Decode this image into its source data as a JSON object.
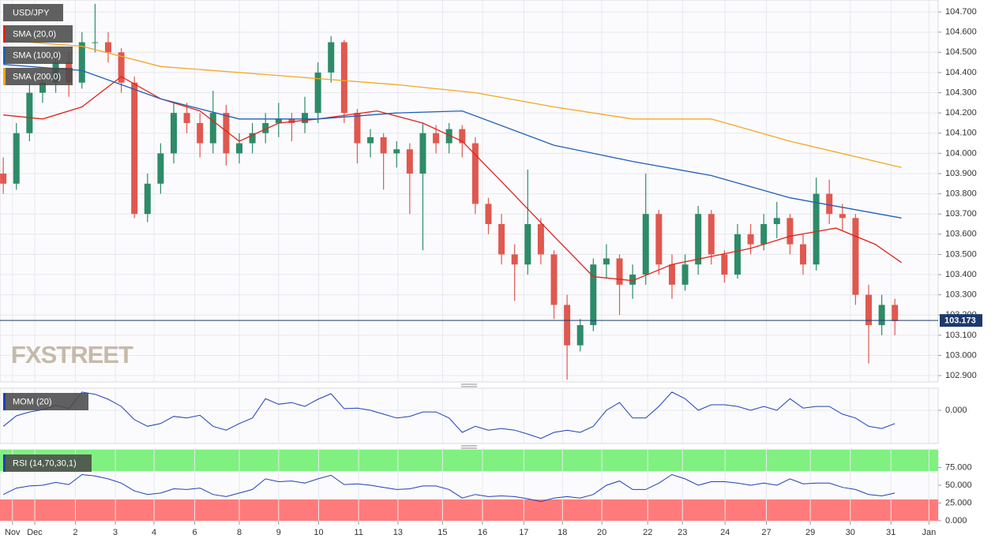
{
  "chart_data": [
    {
      "type": "candlestick",
      "title": "USD/JPY",
      "watermark": "FXSTREET",
      "grid": true,
      "up_color": "#2e8b68",
      "down_color": "#e0584f",
      "last": 103.173,
      "last_color": "#1d3a6e",
      "x": [
        0,
        2,
        4,
        6,
        8,
        10,
        12,
        14,
        16,
        18,
        20,
        22,
        24,
        26,
        28,
        30,
        32,
        34,
        36,
        38,
        40,
        42,
        44,
        46,
        48,
        50,
        52,
        54,
        56,
        58,
        60,
        62,
        64,
        66,
        68,
        70,
        72,
        74,
        76,
        78,
        80,
        82,
        84,
        86,
        88,
        90,
        92,
        94,
        96,
        98,
        100,
        102,
        104,
        106,
        108,
        110,
        112,
        114,
        116,
        118,
        120,
        122,
        124,
        126,
        128,
        130,
        132,
        134,
        136
      ],
      "open": [
        103.9,
        103.85,
        104.1,
        104.3,
        104.35,
        104.45,
        104.35,
        104.55,
        104.55,
        104.5,
        104.35,
        103.7,
        103.85,
        104.0,
        104.2,
        104.15,
        104.05,
        104.2,
        104.0,
        104.05,
        104.1,
        104.15,
        104.17,
        104.15,
        104.2,
        104.4,
        104.55,
        104.2,
        104.05,
        104.08,
        104.0,
        104.02,
        103.9,
        104.1,
        104.05,
        104.12,
        104.05,
        103.75,
        103.65,
        103.5,
        103.45,
        103.65,
        103.5,
        103.25,
        103.05,
        103.15,
        103.45,
        103.48,
        103.35,
        103.4,
        103.7,
        103.45,
        103.35,
        103.45,
        103.7,
        103.5,
        103.4,
        103.6,
        103.55,
        103.65,
        103.68,
        103.55,
        103.45,
        103.8,
        103.7,
        103.68,
        103.3,
        103.15,
        103.25
      ],
      "high": [
        103.98,
        104.15,
        104.35,
        104.4,
        104.5,
        104.5,
        104.6,
        104.74,
        104.6,
        104.52,
        104.38,
        103.9,
        104.05,
        104.25,
        104.25,
        104.2,
        104.31,
        104.24,
        104.1,
        104.15,
        104.2,
        104.25,
        104.2,
        104.28,
        104.45,
        104.58,
        104.56,
        104.22,
        104.12,
        104.1,
        104.06,
        104.05,
        104.15,
        104.14,
        104.15,
        104.14,
        104.08,
        103.78,
        103.7,
        103.55,
        103.92,
        103.68,
        103.52,
        103.3,
        103.18,
        103.48,
        103.55,
        103.5,
        103.45,
        103.9,
        103.72,
        103.5,
        103.5,
        103.74,
        103.72,
        103.52,
        103.65,
        103.65,
        103.7,
        103.76,
        103.7,
        103.6,
        103.88,
        103.87,
        103.75,
        103.7,
        103.35,
        103.3,
        103.28
      ],
      "low": [
        103.8,
        103.82,
        104.06,
        104.25,
        104.3,
        104.28,
        104.32,
        104.5,
        104.45,
        104.3,
        103.68,
        103.66,
        103.8,
        103.95,
        104.1,
        103.98,
        104.0,
        103.94,
        103.95,
        104.0,
        104.05,
        104.08,
        104.06,
        104.1,
        104.15,
        104.35,
        104.15,
        103.95,
        103.98,
        103.82,
        103.93,
        103.7,
        103.52,
        104.0,
        104.0,
        103.98,
        103.7,
        103.6,
        103.45,
        103.27,
        103.4,
        103.45,
        103.18,
        102.88,
        103.02,
        103.12,
        103.38,
        103.2,
        103.28,
        103.35,
        103.4,
        103.28,
        103.32,
        103.4,
        103.45,
        103.36,
        103.38,
        103.5,
        103.52,
        103.58,
        103.5,
        103.4,
        103.42,
        103.65,
        103.62,
        103.25,
        102.96,
        103.1,
        103.1
      ],
      "close": [
        103.85,
        104.1,
        104.3,
        104.35,
        104.45,
        104.35,
        104.55,
        104.55,
        104.5,
        104.35,
        103.7,
        103.85,
        104.0,
        104.2,
        104.15,
        104.05,
        104.2,
        104.0,
        104.05,
        104.1,
        104.15,
        104.17,
        104.15,
        104.2,
        104.4,
        104.55,
        104.2,
        104.05,
        104.08,
        104.0,
        104.02,
        103.9,
        104.1,
        104.05,
        104.12,
        104.05,
        103.75,
        103.65,
        103.5,
        103.45,
        103.65,
        103.5,
        103.25,
        103.05,
        103.15,
        103.45,
        103.48,
        103.35,
        103.4,
        103.7,
        103.45,
        103.35,
        103.45,
        103.7,
        103.5,
        103.4,
        103.6,
        103.55,
        103.65,
        103.68,
        103.55,
        103.45,
        103.8,
        103.7,
        103.68,
        103.3,
        103.15,
        103.25,
        103.17
      ],
      "series": [
        {
          "name": "SMA (20,0)",
          "color": "#e0231c",
          "x": [
            0,
            6,
            12,
            18,
            24,
            30,
            36,
            42,
            48,
            57,
            64,
            70,
            76,
            84,
            90,
            96,
            102,
            108,
            114,
            120,
            127,
            133,
            137
          ],
          "values": [
            104.19,
            104.17,
            104.23,
            104.38,
            104.27,
            104.21,
            104.06,
            104.15,
            104.17,
            104.21,
            104.15,
            104.06,
            103.86,
            103.59,
            103.39,
            103.37,
            103.45,
            103.49,
            103.53,
            103.59,
            103.63,
            103.55,
            103.46
          ]
        },
        {
          "name": "SMA (100,0)",
          "color": "#1f5fb5",
          "x": [
            0,
            12,
            24,
            36,
            48,
            60,
            70,
            84,
            96,
            108,
            120,
            137
          ],
          "values": [
            104.44,
            104.41,
            104.27,
            104.17,
            104.17,
            104.2,
            104.21,
            104.04,
            103.96,
            103.89,
            103.78,
            103.68
          ]
        },
        {
          "name": "SMA (200,0)",
          "color": "#f5a623",
          "x": [
            0,
            12,
            24,
            36,
            48,
            60,
            72,
            84,
            96,
            108,
            120,
            137
          ],
          "values": [
            104.56,
            104.53,
            104.43,
            104.4,
            104.37,
            104.34,
            104.3,
            104.23,
            104.17,
            104.17,
            104.06,
            103.93
          ]
        }
      ],
      "xlim": [
        -0.5,
        142.6
      ],
      "xticks": [
        {
          "value": 1.4,
          "label": "Nov"
        },
        {
          "value": 4.8,
          "label": "Dec"
        },
        {
          "value": 11,
          "label": "2"
        },
        {
          "value": 17.1,
          "label": "3"
        },
        {
          "value": 23,
          "label": "4"
        },
        {
          "value": 29.2,
          "label": "6"
        },
        {
          "value": 36,
          "label": "8"
        },
        {
          "value": 42,
          "label": "9"
        },
        {
          "value": 48.1,
          "label": "10"
        },
        {
          "value": 54.2,
          "label": "11"
        },
        {
          "value": 60.2,
          "label": "13"
        },
        {
          "value": 67,
          "label": "15"
        },
        {
          "value": 73.1,
          "label": "16"
        },
        {
          "value": 79.4,
          "label": "17"
        },
        {
          "value": 85.3,
          "label": "18"
        },
        {
          "value": 91.3,
          "label": "20"
        },
        {
          "value": 98.3,
          "label": "22"
        },
        {
          "value": 103.6,
          "label": "23"
        },
        {
          "value": 110.1,
          "label": "24"
        },
        {
          "value": 116.4,
          "label": "27"
        },
        {
          "value": 123.1,
          "label": "29"
        },
        {
          "value": 129.2,
          "label": "30"
        },
        {
          "value": 135.4,
          "label": "31"
        },
        {
          "value": 141.2,
          "label": "Jan"
        }
      ],
      "ylim": [
        102.869,
        104.759
      ],
      "yticks": [
        {
          "value": 102.9,
          "label": "102.900"
        },
        {
          "value": 103.0,
          "label": "103.000"
        },
        {
          "value": 103.1,
          "label": "103.100"
        },
        {
          "value": 103.2,
          "label": "103.200"
        },
        {
          "value": 103.3,
          "label": "103.300"
        },
        {
          "value": 103.4,
          "label": "103.400"
        },
        {
          "value": 103.5,
          "label": "103.500"
        },
        {
          "value": 103.6,
          "label": "103.600"
        },
        {
          "value": 103.7,
          "label": "103.700"
        },
        {
          "value": 103.8,
          "label": "103.800"
        },
        {
          "value": 103.9,
          "label": "103.900"
        },
        {
          "value": 104.0,
          "label": "104.000"
        },
        {
          "value": 104.1,
          "label": "104.100"
        },
        {
          "value": 104.2,
          "label": "104.200"
        },
        {
          "value": 104.3,
          "label": "104.300"
        },
        {
          "value": 104.4,
          "label": "104.400"
        },
        {
          "value": 104.5,
          "label": "104.500"
        },
        {
          "value": 104.6,
          "label": "104.600"
        },
        {
          "value": 104.7,
          "label": "104.700"
        }
      ]
    },
    {
      "type": "line",
      "title": "MOM (20)",
      "color": "#1f3fb5",
      "xlim": [
        -0.5,
        142.6
      ],
      "ylim": [
        -0.6,
        0.4
      ],
      "yticks": [
        {
          "value": 0,
          "label": "0.000"
        }
      ],
      "x": [
        0,
        2,
        4,
        6,
        8,
        10,
        12,
        14,
        16,
        18,
        20,
        22,
        24,
        26,
        28,
        30,
        32,
        34,
        36,
        38,
        40,
        42,
        44,
        46,
        48,
        50,
        52,
        54,
        56,
        58,
        60,
        62,
        64,
        66,
        68,
        70,
        72,
        74,
        76,
        78,
        80,
        82,
        84,
        86,
        88,
        90,
        92,
        94,
        96,
        98,
        100,
        102,
        104,
        106,
        108,
        110,
        112,
        114,
        116,
        118,
        120,
        122,
        124,
        126,
        128,
        130,
        132,
        134,
        136
      ],
      "values": [
        -0.29,
        -0.1,
        -0.03,
        0.01,
        0.09,
        0.03,
        0.33,
        0.29,
        0.2,
        0.07,
        -0.17,
        -0.29,
        -0.24,
        -0.11,
        -0.14,
        -0.09,
        -0.29,
        -0.36,
        -0.24,
        -0.14,
        0.21,
        0.11,
        0.14,
        0.07,
        0.2,
        0.3,
        0.03,
        0.04,
        0,
        -0.07,
        -0.14,
        -0.11,
        -0.03,
        -0.03,
        -0.14,
        -0.4,
        -0.29,
        -0.36,
        -0.33,
        -0.36,
        -0.43,
        -0.51,
        -0.4,
        -0.36,
        -0.4,
        -0.29,
        0,
        0.14,
        -0.14,
        -0.14,
        0.07,
        0.33,
        0.21,
        0,
        0.1,
        0.1,
        0.07,
        0,
        0.07,
        0,
        0.21,
        0.04,
        0.07,
        0.07,
        -0.07,
        -0.14,
        -0.29,
        -0.33,
        -0.24
      ]
    },
    {
      "type": "line",
      "title": "RSI (14,70,30,1)",
      "color": "#1f3fb5",
      "xlim": [
        -0.5,
        142.6
      ],
      "ylim": [
        0,
        100
      ],
      "overbought": 70,
      "oversold": 30,
      "overbought_color": "#80f080",
      "oversold_color": "#ff7b7b",
      "yticks": [
        {
          "value": 0,
          "label": "0.000"
        },
        {
          "value": 25,
          "label": "25.000"
        },
        {
          "value": 50,
          "label": "50.000"
        },
        {
          "value": 75,
          "label": "75.000"
        }
      ],
      "x": [
        0,
        2,
        4,
        6,
        8,
        10,
        12,
        14,
        16,
        18,
        20,
        22,
        24,
        26,
        28,
        30,
        32,
        34,
        36,
        38,
        40,
        42,
        44,
        46,
        48,
        50,
        52,
        54,
        56,
        58,
        60,
        62,
        64,
        66,
        68,
        70,
        72,
        74,
        76,
        78,
        80,
        82,
        84,
        86,
        88,
        90,
        92,
        94,
        96,
        98,
        100,
        102,
        104,
        106,
        108,
        110,
        112,
        114,
        116,
        118,
        120,
        122,
        124,
        126,
        128,
        130,
        132,
        134,
        136
      ],
      "values": [
        37,
        46,
        49,
        50,
        54,
        51,
        65,
        63,
        59,
        53,
        42,
        37,
        39,
        45,
        44,
        46,
        37,
        34,
        39,
        44,
        59,
        55,
        56,
        53,
        59,
        64,
        51,
        52,
        50,
        47,
        44,
        45,
        49,
        49,
        44,
        32,
        37,
        34,
        35,
        34,
        31,
        27,
        32,
        34,
        32,
        37,
        50,
        56,
        44,
        44,
        53,
        65,
        59,
        50,
        55,
        55,
        53,
        50,
        53,
        50,
        59,
        52,
        53,
        53,
        47,
        44,
        37,
        35,
        39
      ]
    }
  ]
}
